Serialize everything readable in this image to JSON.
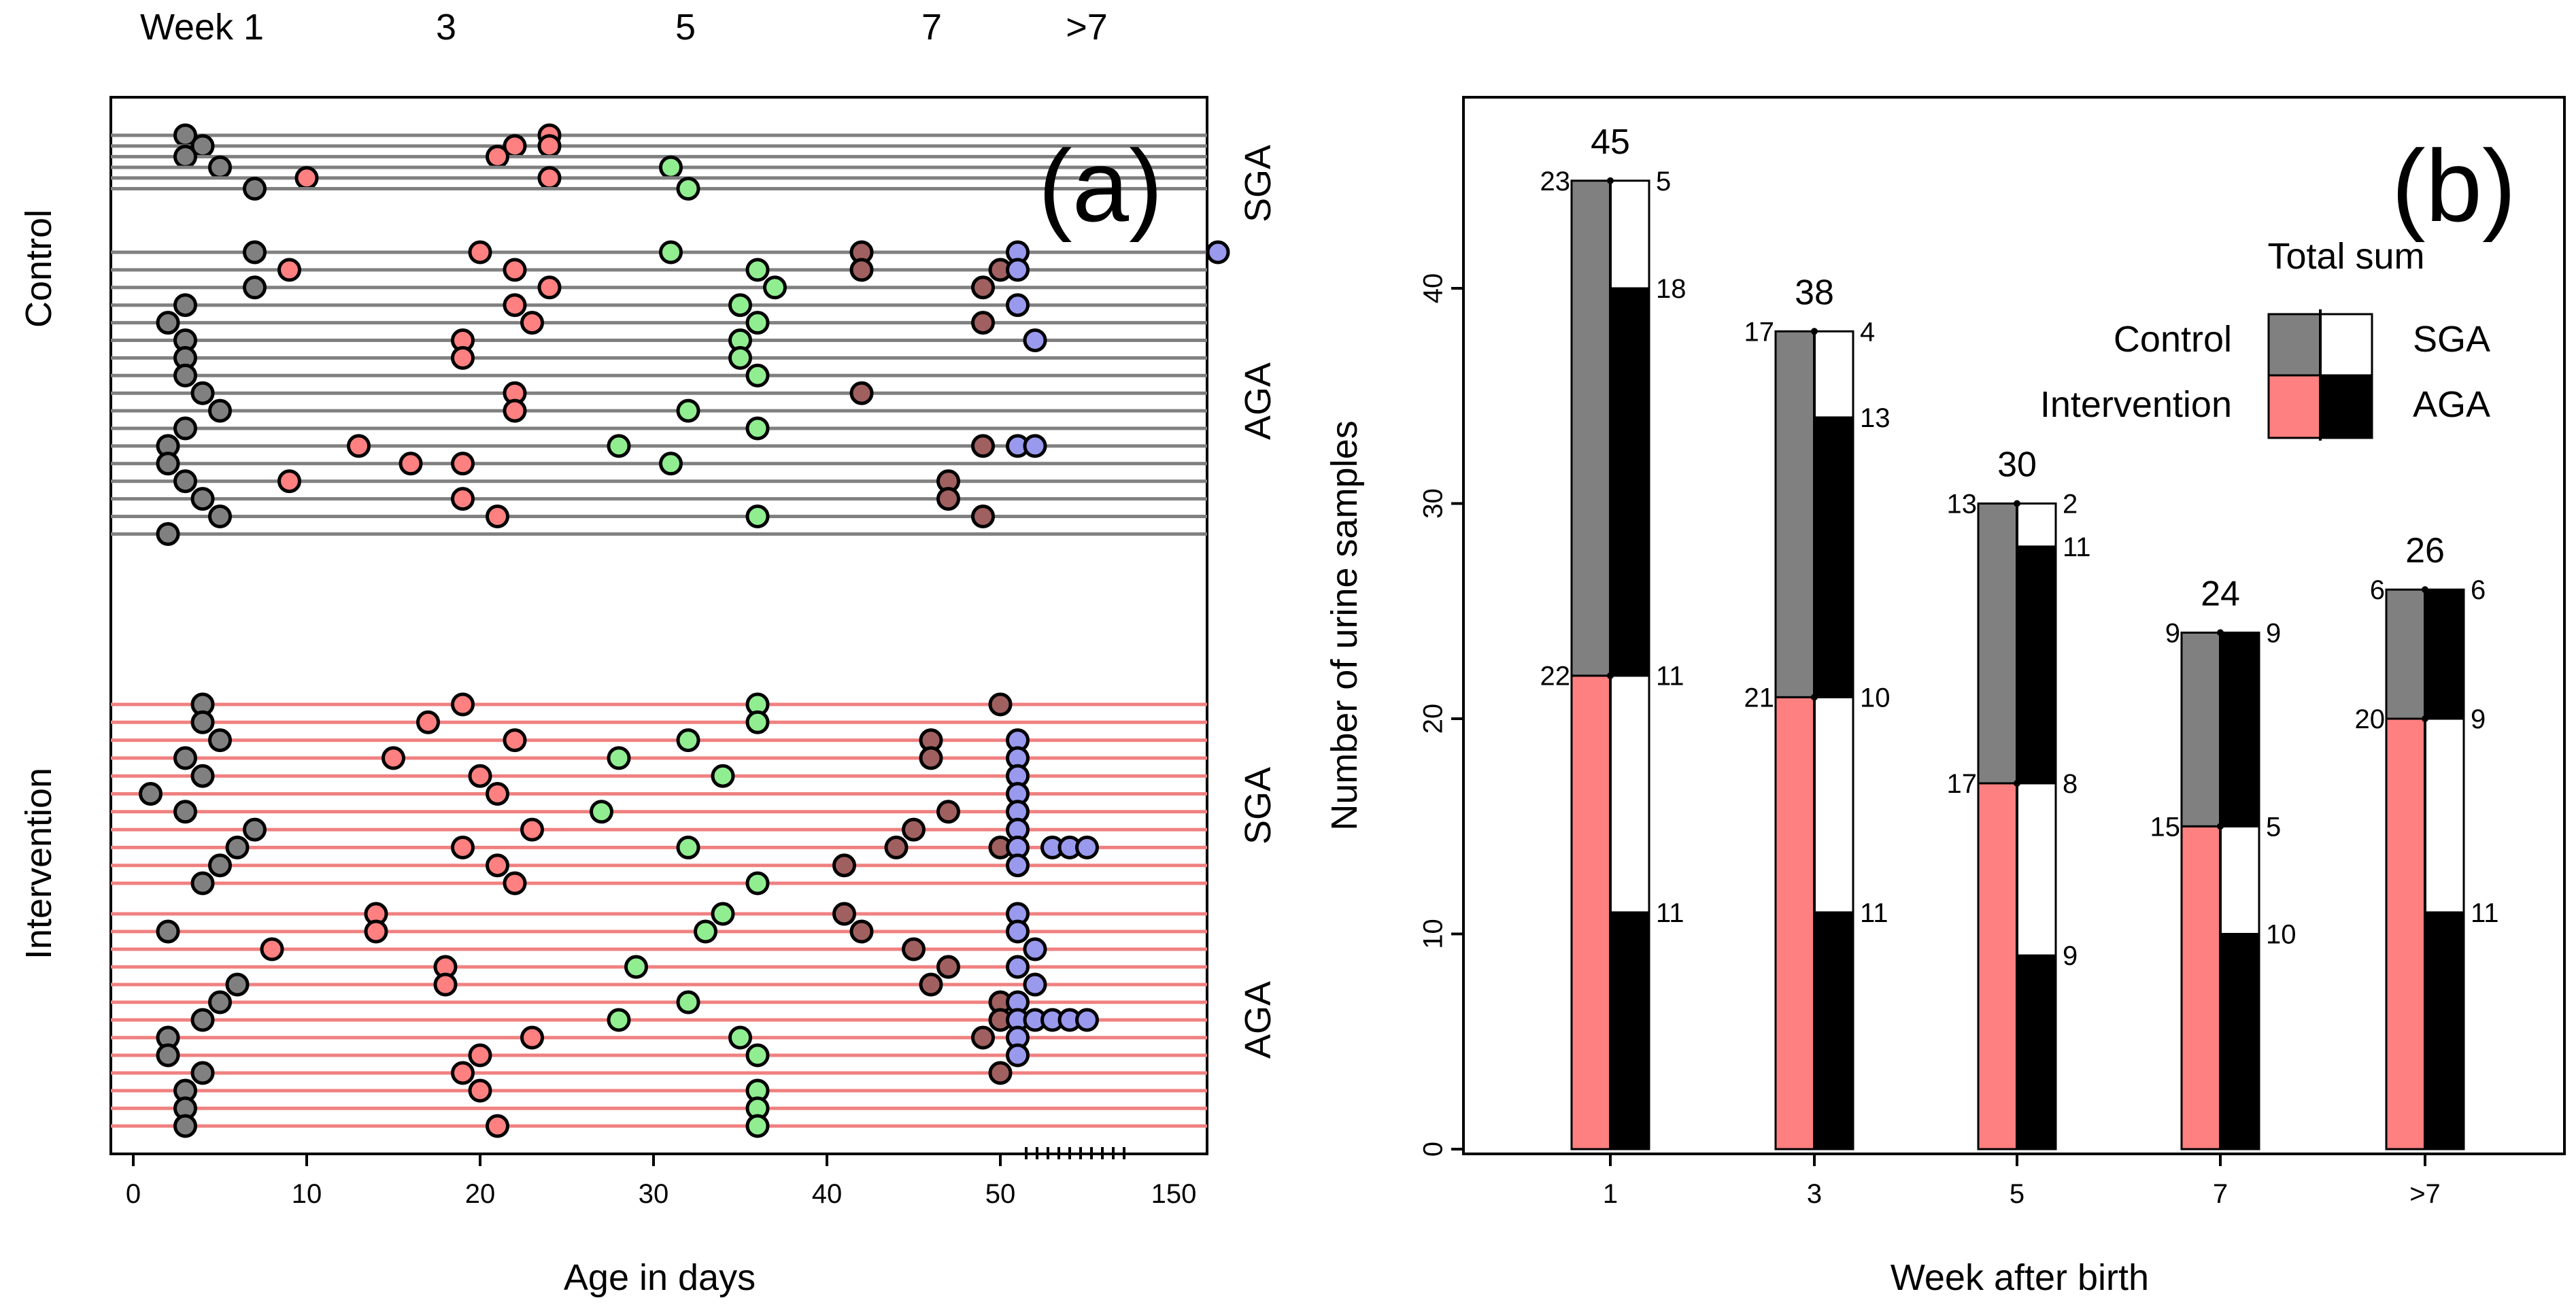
{
  "chart_data": [
    {
      "type": "scatter",
      "panel_label": "(a)",
      "xlabel": "Age in days",
      "x_tick_labels": [
        "0",
        "10",
        "20",
        "30",
        "40",
        "50",
        "150"
      ],
      "top_labels": [
        "Week 1",
        "3",
        "5",
        "7",
        ">7"
      ],
      "group_labels": [
        "Control",
        "Intervention"
      ],
      "subgroup_labels": [
        "SGA",
        "AGA",
        "SGA",
        "AGA"
      ],
      "colors": {
        "control_line": "#808080",
        "intervention_line": "#f08080",
        "week1": "#808080",
        "week3": "#ff8080",
        "week5": "#90ee90",
        "week7": "#a06060",
        "week_gt7": "#9999ee"
      },
      "x_axis_note": "0 to 50 days linear, then compressed to 150 days",
      "rows": {
        "control_sga": [
          [
            3,
            24
          ],
          [
            4,
            22,
            24
          ],
          [
            3,
            21
          ],
          [
            5,
            31
          ],
          [
            10,
            24
          ],
          [
            7,
            32
          ]
        ],
        "control_aga": [
          [
            7,
            20,
            31,
            42,
            51,
            148
          ],
          [
            9,
            22,
            36,
            42,
            50,
            51
          ],
          [
            7,
            24,
            37,
            49
          ],
          [
            3,
            22,
            35,
            51
          ],
          [
            2,
            23,
            36,
            49
          ],
          [
            3,
            19,
            35,
            52
          ],
          [
            3,
            19,
            35
          ],
          [
            3,
            36
          ],
          [
            4,
            22,
            42
          ],
          [
            5,
            22,
            32
          ],
          [
            3,
            36
          ],
          [
            2,
            13,
            28,
            49,
            51,
            52
          ],
          [
            2,
            16,
            19,
            31
          ],
          [
            3,
            9,
            47
          ],
          [
            4,
            19,
            47
          ],
          [
            5,
            21,
            36,
            49
          ],
          [
            2
          ]
        ],
        "intervention_sga": [
          [
            4,
            19,
            36,
            50
          ],
          [
            4,
            17,
            36
          ],
          [
            5,
            22,
            32,
            46,
            51
          ],
          [
            3,
            15,
            28,
            46,
            51
          ],
          [
            4,
            20,
            34,
            51
          ],
          [
            1,
            21,
            51
          ],
          [
            3,
            27,
            47,
            51
          ],
          [
            7,
            23,
            45,
            51
          ],
          [
            6,
            19,
            32,
            44,
            50,
            51,
            53,
            54,
            55
          ],
          [
            5,
            21,
            41,
            51
          ],
          [
            4,
            22,
            36
          ]
        ],
        "intervention_aga": [
          [
            14,
            34,
            41,
            51
          ],
          [
            2,
            14,
            33,
            42,
            51
          ],
          [
            8,
            45,
            52
          ],
          [
            18,
            29,
            47,
            51
          ],
          [
            6,
            18,
            46,
            52
          ],
          [
            5,
            32,
            50,
            51
          ],
          [
            4,
            28,
            50,
            51,
            52,
            53,
            54,
            55
          ],
          [
            2,
            23,
            35,
            49,
            51
          ],
          [
            2,
            20,
            36,
            51
          ],
          [
            4,
            19,
            50
          ],
          [
            3,
            20,
            36
          ],
          [
            3,
            36
          ],
          [
            3,
            21,
            36
          ]
        ]
      }
    },
    {
      "type": "bar",
      "panel_label": "(b)",
      "xlabel": "Week after birth",
      "ylabel": "Number of urine samples",
      "ylim": [
        0,
        50
      ],
      "y_ticks": [
        0,
        10,
        20,
        30,
        40
      ],
      "y_tick_labels": [
        "0",
        "10",
        "20",
        "30",
        "40"
      ],
      "categories": [
        "1",
        "3",
        "5",
        "7",
        ">7"
      ],
      "totals": [
        "45",
        "38",
        "30",
        "24",
        "26"
      ],
      "control": [
        23,
        17,
        13,
        9,
        6
      ],
      "intervention": [
        22,
        21,
        17,
        15,
        20
      ],
      "control_sga": [
        5,
        4,
        2,
        0,
        0
      ],
      "control_aga": [
        18,
        13,
        11,
        9,
        6
      ],
      "intervention_sga": [
        11,
        10,
        8,
        5,
        9
      ],
      "intervention_aga": [
        11,
        11,
        9,
        10,
        11
      ],
      "left_labels": [
        [
          "23",
          "22"
        ],
        [
          "17",
          "21"
        ],
        [
          "13",
          "17"
        ],
        [
          "9",
          "15"
        ],
        [
          "6",
          "20"
        ]
      ],
      "right_labels": [
        [
          "5",
          "18",
          "11",
          "11"
        ],
        [
          "4",
          "13",
          "10",
          "11"
        ],
        [
          "2",
          "11",
          "8",
          "9"
        ],
        [
          "9",
          "5",
          "10"
        ],
        [
          "6",
          "9",
          "11"
        ]
      ],
      "legend": {
        "title": "Total sum",
        "rows": [
          "Control",
          "Intervention"
        ],
        "cols": [
          "SGA",
          "AGA"
        ]
      },
      "colors": {
        "control": "#808080",
        "intervention": "#ff8080",
        "sga": "#ffffff",
        "aga": "#000000"
      }
    }
  ]
}
